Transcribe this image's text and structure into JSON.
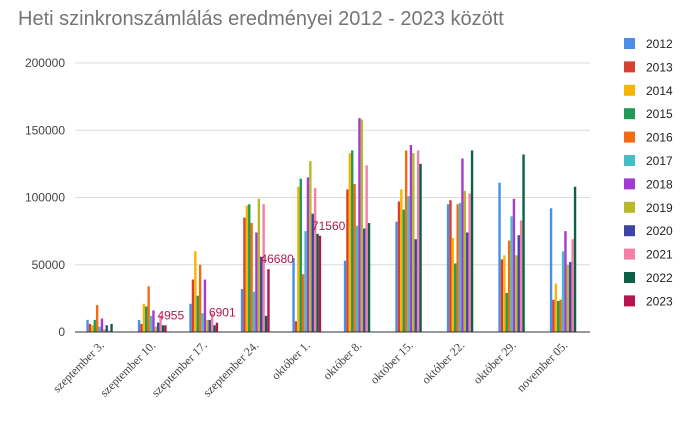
{
  "chart_data": {
    "type": "bar",
    "title": "Heti szinkronszámlálás eredményei 2012 - 2023 között",
    "xlabel": "",
    "ylabel": "",
    "ylim": [
      0,
      200000
    ],
    "yticks": [
      0,
      50000,
      100000,
      150000,
      200000
    ],
    "ytick_labels": [
      "0",
      "50000",
      "100000",
      "150000",
      "200000"
    ],
    "grid": true,
    "legend_position": "right",
    "categories": [
      "szeptember 3.",
      "szeptember 10.",
      "szeptember 17.",
      "szeptember 24.",
      "október 1.",
      "október 8.",
      "október 15.",
      "október 22.",
      "október 29.",
      "november 05."
    ],
    "series": [
      {
        "name": "2012",
        "color": "#4a8fe7",
        "values": [
          9000,
          9000,
          21000,
          32000,
          55000,
          53000,
          82000,
          95000,
          111000,
          92000
        ]
      },
      {
        "name": "2013",
        "color": "#d93f2f",
        "values": [
          6000,
          6000,
          39000,
          85000,
          8000,
          106000,
          97000,
          98000,
          54000,
          24000
        ]
      },
      {
        "name": "2014",
        "color": "#f7b500",
        "values": [
          5000,
          21000,
          60000,
          94000,
          108000,
          133000,
          106000,
          70000,
          57000,
          36000
        ]
      },
      {
        "name": "2015",
        "color": "#1f9b55",
        "values": [
          9000,
          19000,
          27000,
          95000,
          114000,
          135000,
          91000,
          51000,
          29000,
          23000
        ]
      },
      {
        "name": "2016",
        "color": "#f46b14",
        "values": [
          20000,
          34000,
          50000,
          81000,
          43000,
          110000,
          135000,
          95000,
          68000,
          24000
        ]
      },
      {
        "name": "2017",
        "color": "#43bdc8",
        "values": [
          4000,
          12000,
          14000,
          30000,
          75000,
          79000,
          101000,
          96000,
          86000,
          60000
        ]
      },
      {
        "name": "2018",
        "color": "#a33ad4",
        "values": [
          10000,
          16000,
          39000,
          74000,
          115000,
          159000,
          139000,
          129000,
          99000,
          75000
        ]
      },
      {
        "name": "2019",
        "color": "#b7b82a",
        "values": [
          2000,
          4000,
          9000,
          99000,
          127000,
          158000,
          133000,
          105000,
          57000,
          50000
        ]
      },
      {
        "name": "2020",
        "color": "#3d44a8",
        "values": [
          5000,
          7000,
          9000,
          56000,
          88000,
          77000,
          69000,
          74000,
          72000,
          52000
        ]
      },
      {
        "name": "2021",
        "color": "#f47fa8",
        "values": [
          1000,
          12000,
          14000,
          95000,
          107000,
          124000,
          135000,
          103000,
          83000,
          69000
        ]
      },
      {
        "name": "2022",
        "color": "#0b6148",
        "values": [
          6000,
          5000,
          5000,
          12000,
          73000,
          81000,
          125000,
          135000,
          132000,
          108000
        ]
      },
      {
        "name": "2023",
        "color": "#b5154e",
        "values": [
          null,
          4955,
          6901,
          46680,
          71560,
          null,
          null,
          null,
          null,
          null
        ]
      }
    ],
    "data_labels": [
      {
        "series": "2023",
        "category": "szeptember 10.",
        "text": "4955"
      },
      {
        "series": "2023",
        "category": "szeptember 17.",
        "text": "6901"
      },
      {
        "series": "2023",
        "category": "szeptember 24.",
        "text": "46680"
      },
      {
        "series": "2023",
        "category": "október 1.",
        "text": "71560"
      }
    ]
  }
}
